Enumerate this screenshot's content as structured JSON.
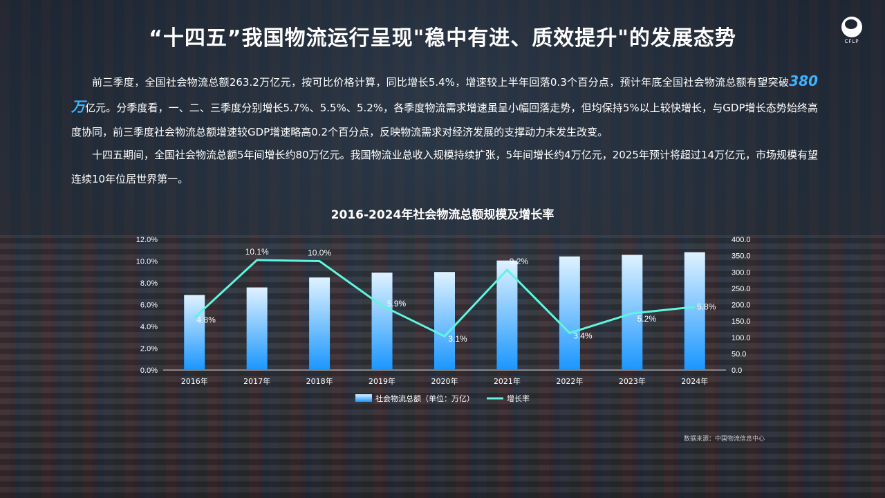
{
  "title": "“十四五”我国物流运行呈现\"稳中有进、质效提升\"的发展态势",
  "logo": {
    "icon": "cflp-logo-icon",
    "text": "CFLP"
  },
  "paragraph1": {
    "before": "前三季度，全国社会物流总额263.2万亿元，按可比价格计算，同比增长5.4%，增速较上半年回落0.3个百分点，预计年底全国社会物流总额有望突破",
    "highlight": "380万",
    "after": "亿元。分季度看，一、二、三季度分别增长5.7%、5.5%、5.2%，各季度物流需求增速虽呈小幅回落走势，但均保持5%以上较快增长，与GDP增长态势始终高度协同，前三季度社会物流总额增速较GDP增速略高0.2个百分点，反映物流需求对经济发展的支撑动力未发生改变。"
  },
  "paragraph2": "十四五期间，全国社会物流总额5年间增长约80万亿元。我国物流业总收入规模持续扩张，5年间增长约4万亿元，2025年预计将超过14万亿元，市场规模有望连续10年位居世界第一。",
  "source": "数据来源：中国物流信息中心",
  "colors": {
    "bar_top": "#dff2ff",
    "bar_bottom": "#1a96ff",
    "line": "#5ff5de",
    "highlight": "#3fb3ff"
  },
  "chart_data": {
    "type": "bar",
    "title": "2016-2024年社会物流总额规模及增长率",
    "categories": [
      "2016年",
      "2017年",
      "2018年",
      "2019年",
      "2020年",
      "2021年",
      "2022年",
      "2023年",
      "2024年"
    ],
    "series": [
      {
        "name": "社会物流总额（单位：万亿）",
        "type": "bar",
        "axis": "right",
        "values": [
          229.7,
          252.8,
          283.1,
          298.0,
          300.1,
          335.2,
          347.6,
          352.4,
          360.6
        ]
      },
      {
        "name": "增长率",
        "type": "line",
        "axis": "left",
        "values": [
          4.8,
          10.1,
          10.0,
          5.9,
          3.1,
          9.2,
          3.4,
          5.2,
          5.8
        ],
        "labels": [
          "4.8%",
          "10.1%",
          "10.0%",
          "5.9%",
          "3.1%",
          "9.2%",
          "3.4%",
          "5.2%",
          "5.8%"
        ]
      }
    ],
    "y_left": {
      "min": 0,
      "max": 12,
      "ticks": [
        "0.0%",
        "2.0%",
        "4.0%",
        "6.0%",
        "8.0%",
        "10.0%",
        "12.0%"
      ]
    },
    "y_right": {
      "min": 0,
      "max": 400,
      "ticks": [
        "0.0",
        "50.0",
        "100.0",
        "150.0",
        "200.0",
        "250.0",
        "300.0",
        "350.0",
        "400.0"
      ]
    },
    "legend_position": "bottom-center",
    "grid": false
  }
}
